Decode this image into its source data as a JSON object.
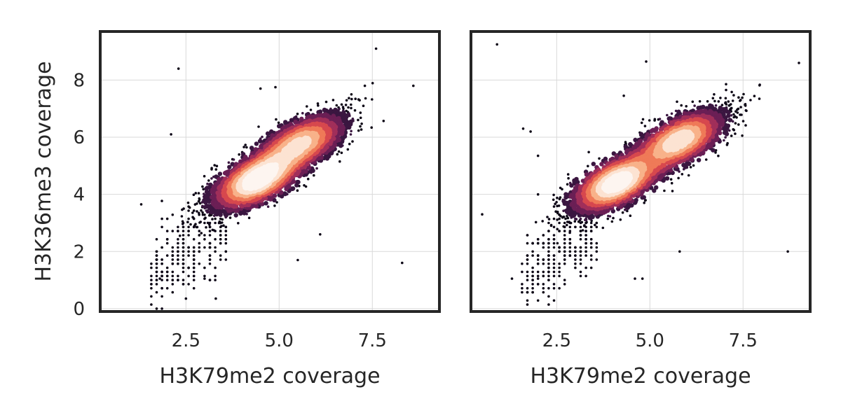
{
  "chart_data": [
    {
      "type": "scatter",
      "title": "",
      "xlabel": "H3K79me2 coverage",
      "ylabel": "H3K36me3 coverage",
      "xlim": [
        0.2,
        9.3
      ],
      "ylim": [
        -0.1,
        9.7
      ],
      "xticks": [
        "2.5",
        "5.0",
        "7.5"
      ],
      "yticks": [
        "0",
        "2",
        "4",
        "6",
        "8"
      ],
      "grid": true,
      "colormap": [
        "#0d0716",
        "#3a1640",
        "#6b1f55",
        "#a12f5a",
        "#d7484e",
        "#ef7a58",
        "#f8b28a",
        "#fce3d2",
        "#fdf5f0"
      ],
      "density_modes": [
        {
          "x": 4.4,
          "y": 4.5,
          "weight": 1.0
        },
        {
          "x": 5.6,
          "y": 5.8,
          "weight": 0.75
        }
      ],
      "outliers": [
        {
          "x": 2.3,
          "y": 8.4
        },
        {
          "x": 2.1,
          "y": 6.1
        },
        {
          "x": 7.6,
          "y": 9.1
        },
        {
          "x": 8.6,
          "y": 7.8
        },
        {
          "x": 8.3,
          "y": 1.6
        },
        {
          "x": 5.5,
          "y": 1.7
        },
        {
          "x": 6.1,
          "y": 2.6
        },
        {
          "x": 2.5,
          "y": 0.35
        },
        {
          "x": 3.3,
          "y": 0.35
        },
        {
          "x": 1.8,
          "y": 1.05
        },
        {
          "x": 3.0,
          "y": 1.05
        },
        {
          "x": 1.3,
          "y": 3.65
        },
        {
          "x": 4.5,
          "y": 7.7
        },
        {
          "x": 7.3,
          "y": 7.8
        },
        {
          "x": 4.9,
          "y": 7.75
        }
      ]
    },
    {
      "type": "scatter",
      "title": "",
      "xlabel": "H3K79me2 coverage",
      "ylabel": "",
      "xlim": [
        0.2,
        9.3
      ],
      "ylim": [
        -0.1,
        9.7
      ],
      "xticks": [
        "2.5",
        "5.0",
        "7.5"
      ],
      "yticks": [],
      "grid": true,
      "colormap": [
        "#0d0716",
        "#3a1640",
        "#6b1f55",
        "#a12f5a",
        "#d7484e",
        "#ef7a58",
        "#f8b28a",
        "#fce3d2",
        "#fdf5f0"
      ],
      "density_modes": [
        {
          "x": 4.1,
          "y": 4.4,
          "weight": 1.0
        },
        {
          "x": 5.8,
          "y": 5.9,
          "weight": 0.85
        }
      ],
      "outliers": [
        {
          "x": 0.9,
          "y": 9.25
        },
        {
          "x": 4.9,
          "y": 8.65
        },
        {
          "x": 9.0,
          "y": 8.6
        },
        {
          "x": 8.7,
          "y": 2.0
        },
        {
          "x": 5.8,
          "y": 2.0
        },
        {
          "x": 0.5,
          "y": 3.3
        },
        {
          "x": 4.3,
          "y": 7.45
        },
        {
          "x": 1.6,
          "y": 6.3
        },
        {
          "x": 1.8,
          "y": 6.2
        },
        {
          "x": 2.0,
          "y": 5.35
        },
        {
          "x": 7.7,
          "y": 7.3
        },
        {
          "x": 4.6,
          "y": 1.05
        },
        {
          "x": 4.8,
          "y": 1.05
        },
        {
          "x": 1.3,
          "y": 1.05
        },
        {
          "x": 2.0,
          "y": 1.05
        }
      ]
    }
  ]
}
